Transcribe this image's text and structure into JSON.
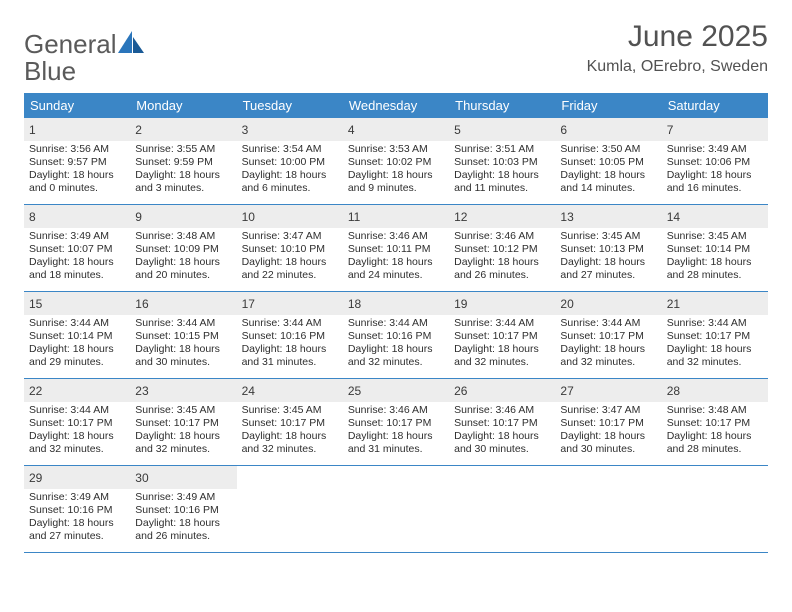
{
  "logo": {
    "text_gray": "General",
    "text_blue": "Blue",
    "mark_color": "#2a75bb"
  },
  "title": "June 2025",
  "location": "Kumla, OErebro, Sweden",
  "header_bg": "#3b86c6",
  "border_color": "#3b86c6",
  "shade_bg": "#ededed",
  "text_color": "#333333",
  "font_size_title": 30,
  "font_size_location": 16,
  "font_size_header": 13,
  "font_size_daynum": 12,
  "font_size_info": 10.5,
  "days_of_week": [
    "Sunday",
    "Monday",
    "Tuesday",
    "Wednesday",
    "Thursday",
    "Friday",
    "Saturday"
  ],
  "weeks": [
    [
      {
        "n": "1",
        "sr": "Sunrise: 3:56 AM",
        "ss": "Sunset: 9:57 PM",
        "d1": "Daylight: 18 hours",
        "d2": "and 0 minutes."
      },
      {
        "n": "2",
        "sr": "Sunrise: 3:55 AM",
        "ss": "Sunset: 9:59 PM",
        "d1": "Daylight: 18 hours",
        "d2": "and 3 minutes."
      },
      {
        "n": "3",
        "sr": "Sunrise: 3:54 AM",
        "ss": "Sunset: 10:00 PM",
        "d1": "Daylight: 18 hours",
        "d2": "and 6 minutes."
      },
      {
        "n": "4",
        "sr": "Sunrise: 3:53 AM",
        "ss": "Sunset: 10:02 PM",
        "d1": "Daylight: 18 hours",
        "d2": "and 9 minutes."
      },
      {
        "n": "5",
        "sr": "Sunrise: 3:51 AM",
        "ss": "Sunset: 10:03 PM",
        "d1": "Daylight: 18 hours",
        "d2": "and 11 minutes."
      },
      {
        "n": "6",
        "sr": "Sunrise: 3:50 AM",
        "ss": "Sunset: 10:05 PM",
        "d1": "Daylight: 18 hours",
        "d2": "and 14 minutes."
      },
      {
        "n": "7",
        "sr": "Sunrise: 3:49 AM",
        "ss": "Sunset: 10:06 PM",
        "d1": "Daylight: 18 hours",
        "d2": "and 16 minutes."
      }
    ],
    [
      {
        "n": "8",
        "sr": "Sunrise: 3:49 AM",
        "ss": "Sunset: 10:07 PM",
        "d1": "Daylight: 18 hours",
        "d2": "and 18 minutes."
      },
      {
        "n": "9",
        "sr": "Sunrise: 3:48 AM",
        "ss": "Sunset: 10:09 PM",
        "d1": "Daylight: 18 hours",
        "d2": "and 20 minutes."
      },
      {
        "n": "10",
        "sr": "Sunrise: 3:47 AM",
        "ss": "Sunset: 10:10 PM",
        "d1": "Daylight: 18 hours",
        "d2": "and 22 minutes."
      },
      {
        "n": "11",
        "sr": "Sunrise: 3:46 AM",
        "ss": "Sunset: 10:11 PM",
        "d1": "Daylight: 18 hours",
        "d2": "and 24 minutes."
      },
      {
        "n": "12",
        "sr": "Sunrise: 3:46 AM",
        "ss": "Sunset: 10:12 PM",
        "d1": "Daylight: 18 hours",
        "d2": "and 26 minutes."
      },
      {
        "n": "13",
        "sr": "Sunrise: 3:45 AM",
        "ss": "Sunset: 10:13 PM",
        "d1": "Daylight: 18 hours",
        "d2": "and 27 minutes."
      },
      {
        "n": "14",
        "sr": "Sunrise: 3:45 AM",
        "ss": "Sunset: 10:14 PM",
        "d1": "Daylight: 18 hours",
        "d2": "and 28 minutes."
      }
    ],
    [
      {
        "n": "15",
        "sr": "Sunrise: 3:44 AM",
        "ss": "Sunset: 10:14 PM",
        "d1": "Daylight: 18 hours",
        "d2": "and 29 minutes."
      },
      {
        "n": "16",
        "sr": "Sunrise: 3:44 AM",
        "ss": "Sunset: 10:15 PM",
        "d1": "Daylight: 18 hours",
        "d2": "and 30 minutes."
      },
      {
        "n": "17",
        "sr": "Sunrise: 3:44 AM",
        "ss": "Sunset: 10:16 PM",
        "d1": "Daylight: 18 hours",
        "d2": "and 31 minutes."
      },
      {
        "n": "18",
        "sr": "Sunrise: 3:44 AM",
        "ss": "Sunset: 10:16 PM",
        "d1": "Daylight: 18 hours",
        "d2": "and 32 minutes."
      },
      {
        "n": "19",
        "sr": "Sunrise: 3:44 AM",
        "ss": "Sunset: 10:17 PM",
        "d1": "Daylight: 18 hours",
        "d2": "and 32 minutes."
      },
      {
        "n": "20",
        "sr": "Sunrise: 3:44 AM",
        "ss": "Sunset: 10:17 PM",
        "d1": "Daylight: 18 hours",
        "d2": "and 32 minutes."
      },
      {
        "n": "21",
        "sr": "Sunrise: 3:44 AM",
        "ss": "Sunset: 10:17 PM",
        "d1": "Daylight: 18 hours",
        "d2": "and 32 minutes."
      }
    ],
    [
      {
        "n": "22",
        "sr": "Sunrise: 3:44 AM",
        "ss": "Sunset: 10:17 PM",
        "d1": "Daylight: 18 hours",
        "d2": "and 32 minutes."
      },
      {
        "n": "23",
        "sr": "Sunrise: 3:45 AM",
        "ss": "Sunset: 10:17 PM",
        "d1": "Daylight: 18 hours",
        "d2": "and 32 minutes."
      },
      {
        "n": "24",
        "sr": "Sunrise: 3:45 AM",
        "ss": "Sunset: 10:17 PM",
        "d1": "Daylight: 18 hours",
        "d2": "and 32 minutes."
      },
      {
        "n": "25",
        "sr": "Sunrise: 3:46 AM",
        "ss": "Sunset: 10:17 PM",
        "d1": "Daylight: 18 hours",
        "d2": "and 31 minutes."
      },
      {
        "n": "26",
        "sr": "Sunrise: 3:46 AM",
        "ss": "Sunset: 10:17 PM",
        "d1": "Daylight: 18 hours",
        "d2": "and 30 minutes."
      },
      {
        "n": "27",
        "sr": "Sunrise: 3:47 AM",
        "ss": "Sunset: 10:17 PM",
        "d1": "Daylight: 18 hours",
        "d2": "and 30 minutes."
      },
      {
        "n": "28",
        "sr": "Sunrise: 3:48 AM",
        "ss": "Sunset: 10:17 PM",
        "d1": "Daylight: 18 hours",
        "d2": "and 28 minutes."
      }
    ],
    [
      {
        "n": "29",
        "sr": "Sunrise: 3:49 AM",
        "ss": "Sunset: 10:16 PM",
        "d1": "Daylight: 18 hours",
        "d2": "and 27 minutes."
      },
      {
        "n": "30",
        "sr": "Sunrise: 3:49 AM",
        "ss": "Sunset: 10:16 PM",
        "d1": "Daylight: 18 hours",
        "d2": "and 26 minutes."
      },
      null,
      null,
      null,
      null,
      null
    ]
  ]
}
